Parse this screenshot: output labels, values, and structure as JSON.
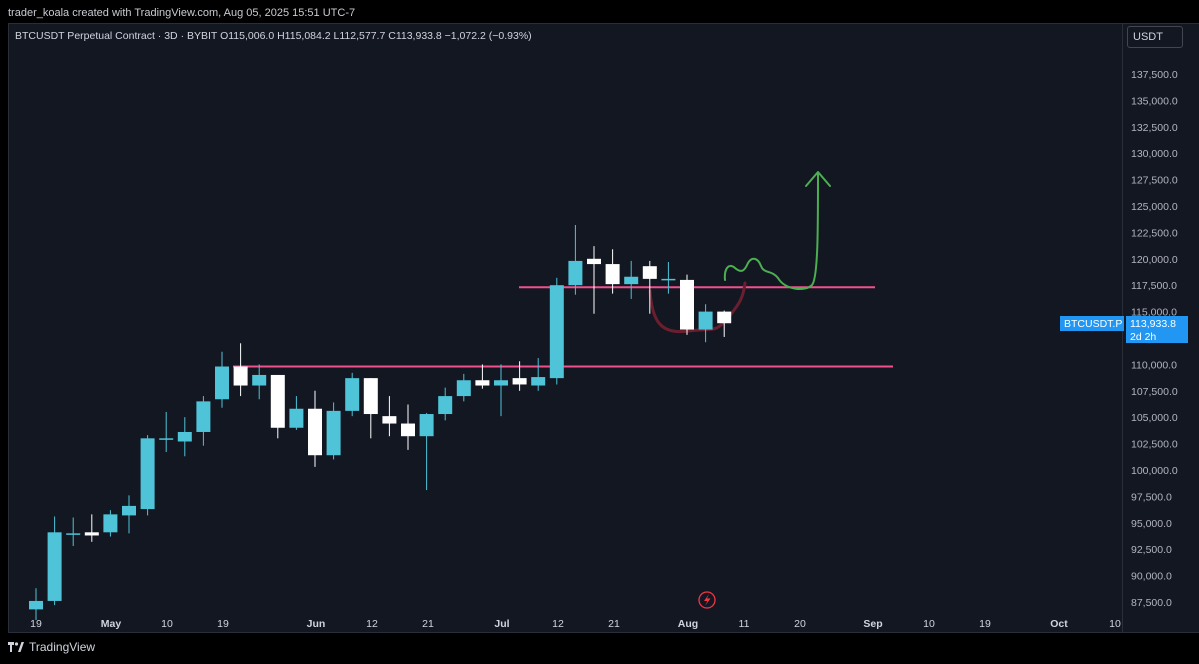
{
  "caption": "trader_koala created with TradingView.com, Aug 05, 2025 15:51 UTC-7",
  "legend": {
    "symbol": "BTCUSDT Perpetual Contract",
    "interval": "3D",
    "exchange": "BYBIT",
    "open": "O115,006.0",
    "high": "H115,084.2",
    "low": "L112,577.7",
    "close": "C113,933.8",
    "change": "−1,072.2 (−0.93%)"
  },
  "currency": "USDT",
  "price_tag": {
    "symbol": "BTCUSDT.P",
    "price": "113,933.8",
    "countdown": "2d 2h"
  },
  "footer_brand": "TradingView",
  "colors": {
    "up": "#4fc3d7",
    "down": "#ffffff",
    "level_line": "#f0508c",
    "arrow": "#4caf50",
    "path": "#6b1f2e",
    "background": "#131722"
  },
  "chart_data": {
    "type": "candlestick",
    "x_tick_labels": [
      "19",
      "May",
      "10",
      "19",
      "Jun",
      "12",
      "21",
      "Jul",
      "12",
      "21",
      "Aug",
      "11",
      "20",
      "Sep",
      "10",
      "19",
      "Oct",
      "10"
    ],
    "y_tick_labels": [
      "137,500.0",
      "135,000.0",
      "132,500.0",
      "130,000.0",
      "127,500.0",
      "125,000.0",
      "122,500.0",
      "120,000.0",
      "117,500.0",
      "115,000.0",
      "112,500.0",
      "110,000.0",
      "107,500.0",
      "105,000.0",
      "102,500.0",
      "100,000.0",
      "97,500.0",
      "95,000.0",
      "92,500.0",
      "90,000.0",
      "87,500.0"
    ],
    "y_range": [
      86200,
      142000
    ],
    "candles": [
      {
        "o": 86800,
        "h": 88800,
        "l": 85800,
        "c": 87600
      },
      {
        "o": 87600,
        "h": 95600,
        "l": 87200,
        "c": 94100
      },
      {
        "o": 93900,
        "h": 95500,
        "l": 92800,
        "c": 94000
      },
      {
        "o": 94100,
        "h": 95800,
        "l": 93200,
        "c": 93800
      },
      {
        "o": 94100,
        "h": 96200,
        "l": 93700,
        "c": 95800
      },
      {
        "o": 95700,
        "h": 97600,
        "l": 94000,
        "c": 96600
      },
      {
        "o": 96300,
        "h": 103300,
        "l": 95700,
        "c": 103000
      },
      {
        "o": 102900,
        "h": 105500,
        "l": 101700,
        "c": 103000
      },
      {
        "o": 102700,
        "h": 105000,
        "l": 101300,
        "c": 103600
      },
      {
        "o": 103600,
        "h": 107000,
        "l": 102300,
        "c": 106500
      },
      {
        "o": 106700,
        "h": 111200,
        "l": 105900,
        "c": 109800
      },
      {
        "o": 109800,
        "h": 112000,
        "l": 107000,
        "c": 108000
      },
      {
        "o": 108000,
        "h": 110000,
        "l": 106700,
        "c": 109000
      },
      {
        "o": 109000,
        "h": 109000,
        "l": 103000,
        "c": 104000
      },
      {
        "o": 104000,
        "h": 107000,
        "l": 103800,
        "c": 105800
      },
      {
        "o": 105800,
        "h": 107500,
        "l": 100300,
        "c": 101400
      },
      {
        "o": 101400,
        "h": 106400,
        "l": 101000,
        "c": 105600
      },
      {
        "o": 105600,
        "h": 109200,
        "l": 105100,
        "c": 108700
      },
      {
        "o": 108700,
        "h": 108700,
        "l": 103000,
        "c": 105300
      },
      {
        "o": 105100,
        "h": 107000,
        "l": 103200,
        "c": 104400
      },
      {
        "o": 104400,
        "h": 106200,
        "l": 101900,
        "c": 103200
      },
      {
        "o": 103200,
        "h": 105400,
        "l": 98100,
        "c": 105300
      },
      {
        "o": 105300,
        "h": 107800,
        "l": 104700,
        "c": 107000
      },
      {
        "o": 107000,
        "h": 109100,
        "l": 106500,
        "c": 108500
      },
      {
        "o": 108500,
        "h": 110000,
        "l": 107700,
        "c": 108000
      },
      {
        "o": 108000,
        "h": 110000,
        "l": 105100,
        "c": 108500
      },
      {
        "o": 108700,
        "h": 110300,
        "l": 107500,
        "c": 108100
      },
      {
        "o": 108000,
        "h": 110600,
        "l": 107500,
        "c": 108800
      },
      {
        "o": 108700,
        "h": 118200,
        "l": 108100,
        "c": 117500
      },
      {
        "o": 117500,
        "h": 123200,
        "l": 116600,
        "c": 119800
      },
      {
        "o": 120000,
        "h": 121200,
        "l": 114800,
        "c": 119500
      },
      {
        "o": 119500,
        "h": 120900,
        "l": 116700,
        "c": 117600
      },
      {
        "o": 117600,
        "h": 119800,
        "l": 116200,
        "c": 118300
      },
      {
        "o": 119300,
        "h": 119800,
        "l": 114800,
        "c": 118100
      },
      {
        "o": 118100,
        "h": 119700,
        "l": 116700,
        "c": 118100
      },
      {
        "o": 118000,
        "h": 118500,
        "l": 112800,
        "c": 113300
      },
      {
        "o": 113300,
        "h": 115700,
        "l": 112100,
        "c": 115000
      },
      {
        "o": 115000,
        "h": 115100,
        "l": 112600,
        "c": 113900
      }
    ],
    "horizontal_levels": [
      117300,
      109800
    ]
  }
}
